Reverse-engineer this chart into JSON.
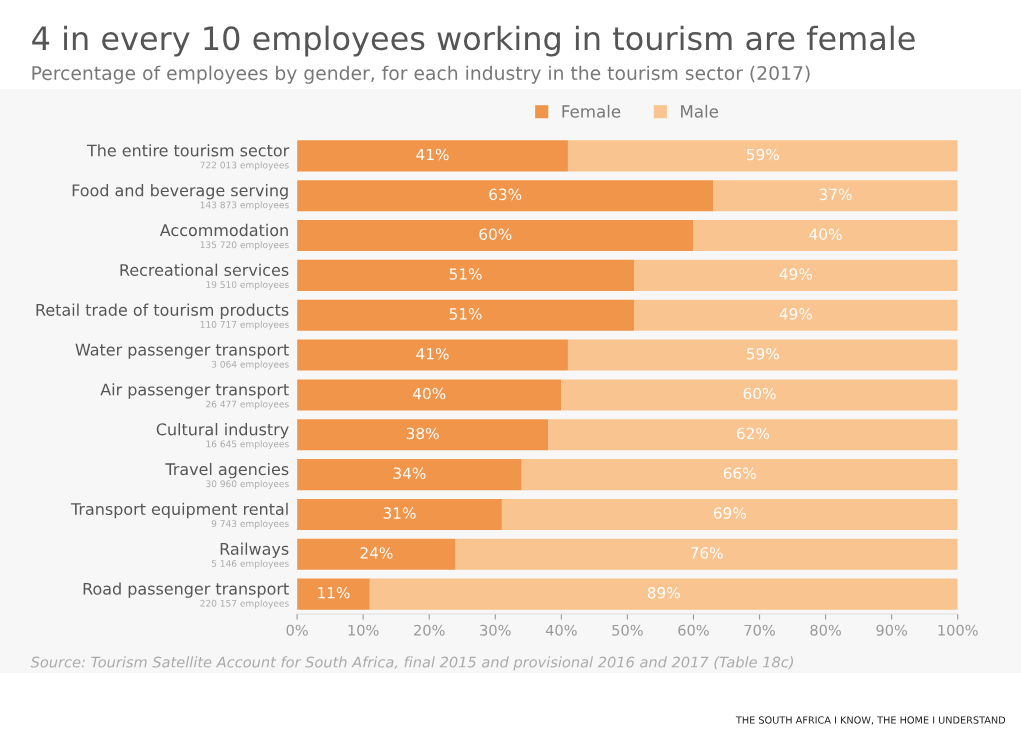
{
  "chart_data": {
    "type": "bar",
    "orientation": "horizontal",
    "stacked": true,
    "title": "4 in every 10 employees working in tourism are female",
    "subtitle": "Percentage of employees by gender, for each industry in the tourism sector (2017)",
    "categories": [
      "The entire tourism sector\n722 013 employees",
      "Food and beverage serving\n143 873 employees",
      "Accommodation\n135 720 employees",
      "Recreational services\n19 510 employees",
      "Retail trade of tourism products\n110 717 employees",
      "Water passenger transport\n3 064 employees",
      "Air passenger transport\n26 477 employees",
      "Cultural industry\n16 645 employees",
      "Travel agencies\n30 960 employees",
      "Transport equipment rental\n9 743 employees",
      "Railways\n5 146 employees",
      "Road passenger transport\n220 157 employees"
    ],
    "series": [
      {
        "name": "Female",
        "color": "#f0954a",
        "values": [
          41,
          63,
          60,
          51,
          51,
          41,
          40,
          38,
          34,
          31,
          24,
          11
        ],
        "value_labels": [
          "41%",
          "63%",
          "60%",
          "51%",
          "51%",
          "41%",
          "40%",
          "38%",
          "34%",
          "31%",
          "24%",
          "11%"
        ]
      },
      {
        "name": "Male",
        "color": "#f9c48f",
        "values": [
          59,
          37,
          40,
          49,
          49,
          59,
          60,
          62,
          66,
          69,
          76,
          89
        ],
        "value_labels": [
          "59%",
          "37%",
          "40%",
          "49%",
          "49%",
          "59%",
          "60%",
          "62%",
          "66%",
          "69%",
          "76%",
          "89%"
        ]
      }
    ],
    "xlim": [
      0,
      100
    ],
    "xticks": [
      {
        "value": 0,
        "label": "0%"
      },
      {
        "value": 10,
        "label": "10%"
      },
      {
        "value": 20,
        "label": "20%"
      },
      {
        "value": 30,
        "label": "30%"
      },
      {
        "value": 40,
        "label": "40%"
      },
      {
        "value": 50,
        "label": "50%"
      },
      {
        "value": 60,
        "label": "60%"
      },
      {
        "value": 70,
        "label": "70%"
      },
      {
        "value": 80,
        "label": "80%"
      },
      {
        "value": 90,
        "label": "90%"
      },
      {
        "value": 100,
        "label": "100%"
      }
    ],
    "grid": false,
    "legend": "top",
    "annotations": [
      "Source: Tourism Satellite Account for South Africa, final 2015 and provisional 2016 and 2017 (Table 18c)",
      "THE SOUTH AFRICA I KNOW, THE HOME I UNDERSTAND"
    ]
  }
}
